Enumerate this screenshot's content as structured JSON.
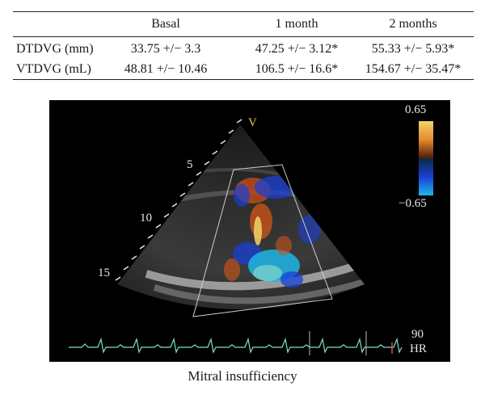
{
  "table": {
    "headers": [
      "",
      "Basal",
      "1 month",
      "2 months"
    ],
    "rows": [
      {
        "label": "DTDVG (mm)",
        "basal": "33.75 +/− 3.3",
        "m1": "47.25 +/− 3.12*",
        "m2": "55.33 +/− 5.93*"
      },
      {
        "label": "VTDVG (mL)",
        "basal": "48.81 +/− 10.46",
        "m1": "106.5 +/− 16.6*",
        "m2": "154.67 +/− 35.47*"
      }
    ]
  },
  "echo": {
    "apex_label": "V",
    "depth_labels": [
      "5",
      "10",
      "15"
    ],
    "scale_max": "0.65",
    "scale_min": "−0.65",
    "heart_rate": "90",
    "heart_rate_unit": "HR",
    "colors": {
      "positive": "#c8541a",
      "positive_top": "#f5d36a",
      "negative": "#1fb6e8",
      "negative_deep": "#1a3fd6",
      "ecg": "#7fe0c8"
    }
  },
  "caption": "Mitral insufficiency"
}
